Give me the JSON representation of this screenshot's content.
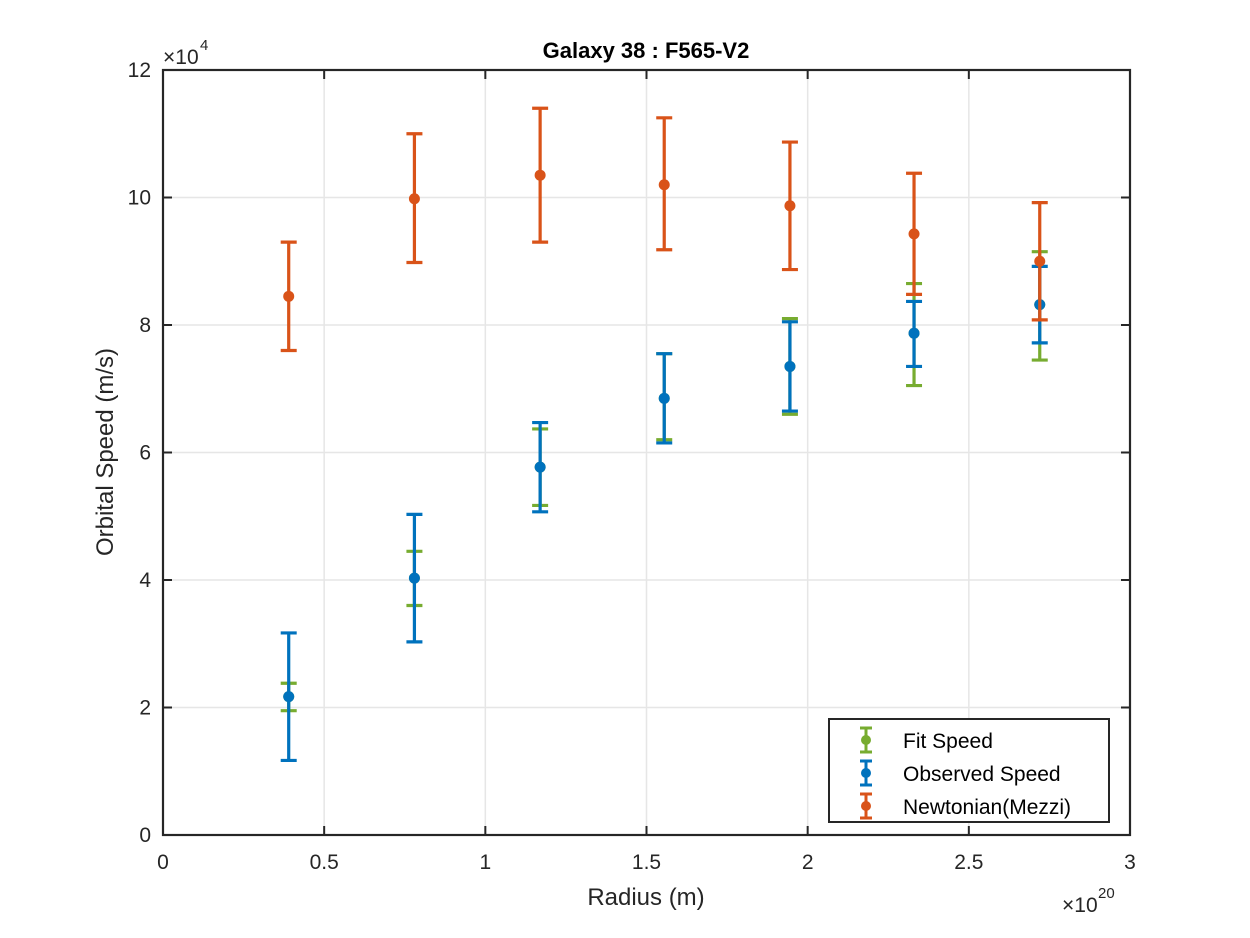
{
  "chart_data": {
    "type": "scatter",
    "title": "Galaxy 38 : F565-V2",
    "xlabel": "Radius (m)",
    "ylabel": "Orbital Speed (m/s)",
    "x_multiplier": {
      "base": "×10",
      "exp": "20"
    },
    "y_multiplier": {
      "base": "×10",
      "exp": "4"
    },
    "xlim": [
      0,
      3
    ],
    "ylim": [
      0,
      12
    ],
    "xticks": [
      0,
      0.5,
      1,
      1.5,
      2,
      2.5,
      3
    ],
    "xtick_labels": [
      "0",
      "0.5",
      "1",
      "1.5",
      "2",
      "2.5",
      "3"
    ],
    "yticks": [
      0,
      2,
      4,
      6,
      8,
      10,
      12
    ],
    "ytick_labels": [
      "0",
      "2",
      "4",
      "6",
      "8",
      "10",
      "12"
    ],
    "grid": true,
    "legend_position": "bottom-right",
    "x": [
      0.39,
      0.78,
      1.17,
      1.555,
      1.945,
      2.33,
      2.72
    ],
    "series": [
      {
        "name": "Fit Speed",
        "color": "#77AC30",
        "y": [
          2.17,
          4.03,
          5.77,
          6.85,
          7.35,
          7.87,
          8.32
        ],
        "lower": [
          1.95,
          3.6,
          5.17,
          6.2,
          6.6,
          7.05,
          7.45
        ],
        "upper": [
          2.38,
          4.45,
          6.37,
          7.55,
          8.1,
          8.65,
          9.15
        ]
      },
      {
        "name": "Observed Speed",
        "color": "#0072BD",
        "y": [
          2.17,
          4.03,
          5.77,
          6.85,
          7.35,
          7.87,
          8.32
        ],
        "lower": [
          1.17,
          3.03,
          5.07,
          6.15,
          6.65,
          7.35,
          7.72
        ],
        "upper": [
          3.17,
          5.03,
          6.47,
          7.55,
          8.05,
          8.37,
          8.92
        ]
      },
      {
        "name": "Newtonian(Mezzi)",
        "color": "#D95319",
        "y": [
          8.45,
          9.98,
          10.35,
          10.2,
          9.87,
          9.43,
          9.0
        ],
        "lower": [
          7.6,
          8.98,
          9.3,
          9.18,
          8.87,
          8.48,
          8.08
        ],
        "upper": [
          9.3,
          11.0,
          11.4,
          11.25,
          10.87,
          10.38,
          9.92
        ]
      }
    ]
  }
}
